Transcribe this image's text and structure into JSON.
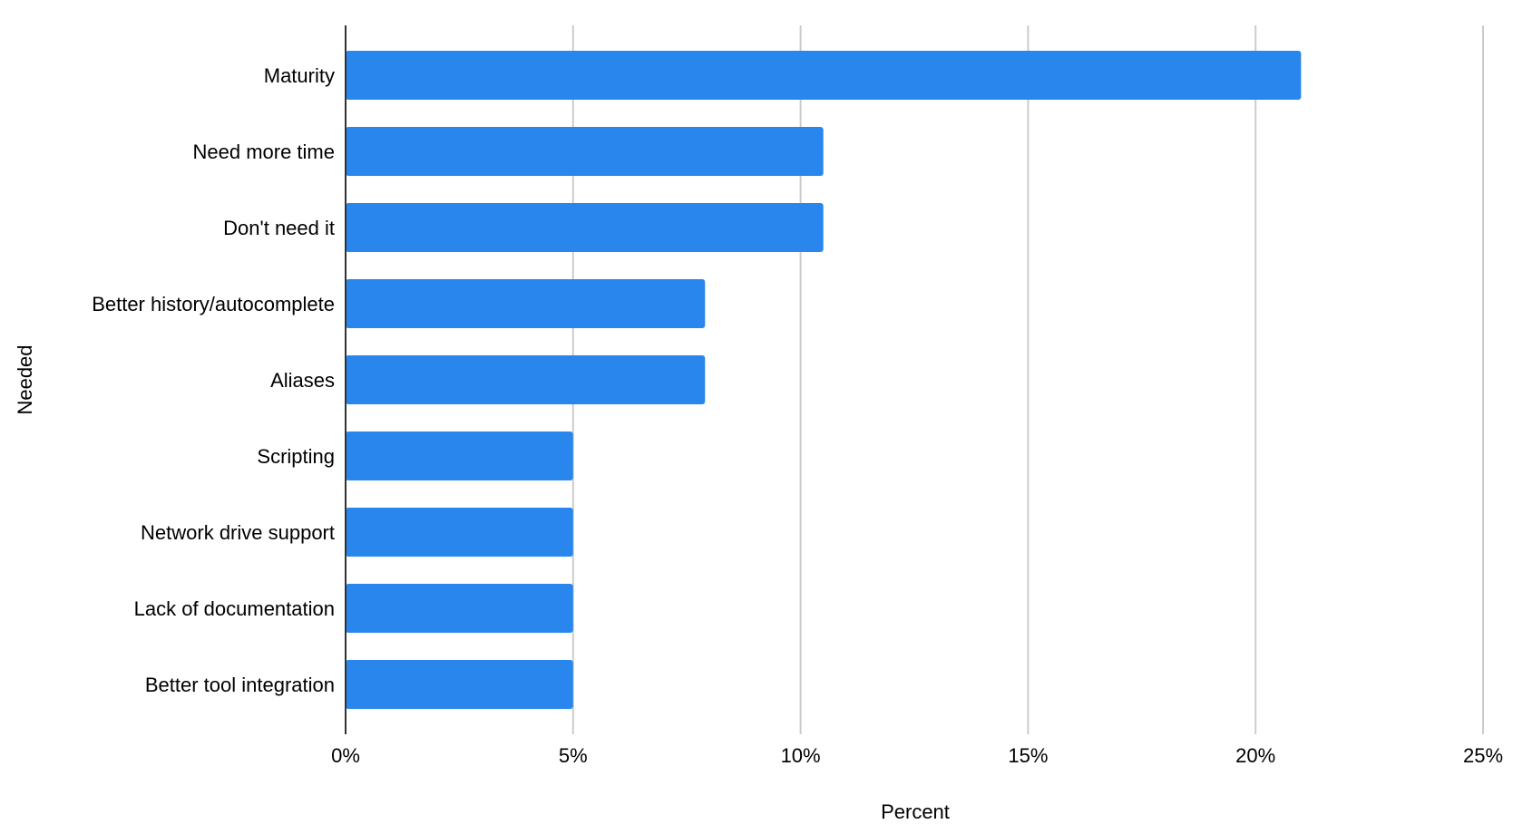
{
  "chart_data": {
    "type": "bar",
    "orientation": "horizontal",
    "categories": [
      "Maturity",
      "Need more time",
      "Don't need it",
      "Better history/autocomplete",
      "Aliases",
      "Scripting",
      "Network drive support",
      "Lack of documentation",
      "Better tool integration"
    ],
    "values": [
      21,
      10.5,
      10.5,
      7.9,
      7.9,
      5,
      5,
      5,
      5
    ],
    "xlabel": "Percent",
    "ylabel": "Needed",
    "xlim": [
      0,
      25
    ],
    "x_ticks": [
      0,
      5,
      10,
      15,
      20,
      25
    ],
    "x_tick_labels": [
      "0%",
      "5%",
      "10%",
      "15%",
      "20%",
      "25%"
    ],
    "grid": true,
    "legend": "none",
    "colors": {
      "bar": "#2886ed",
      "gridline": "#cccccc",
      "axis": "#333333",
      "text": "#000000"
    }
  }
}
